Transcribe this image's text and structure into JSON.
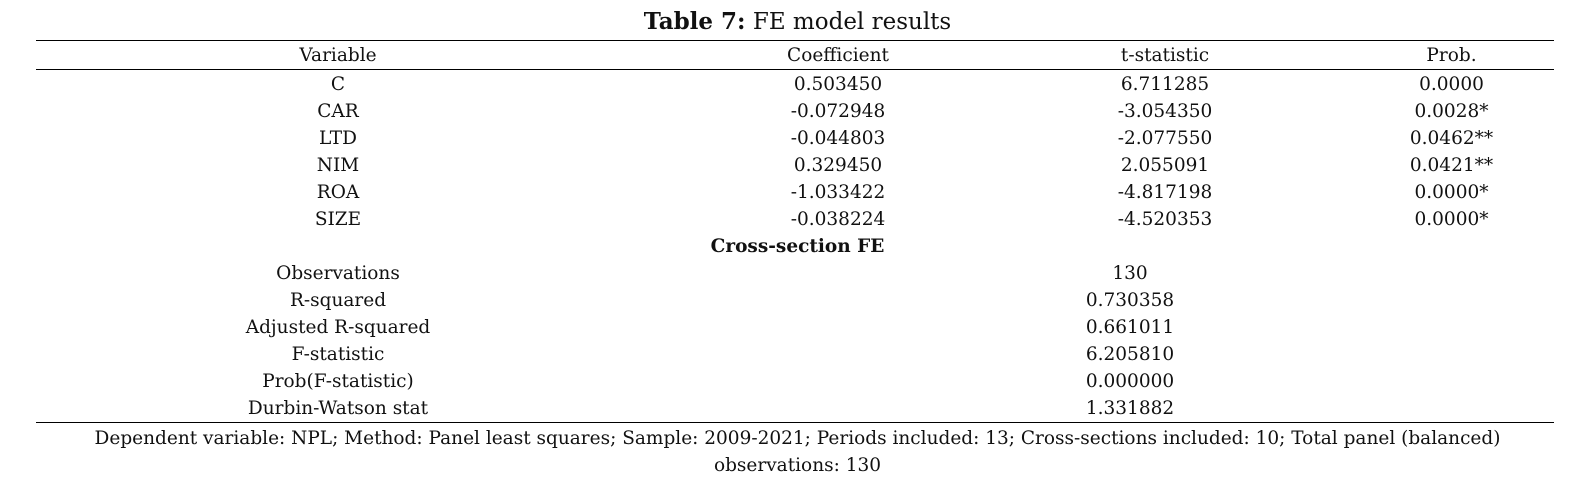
{
  "table": {
    "caption_label": "Table 7:",
    "caption_title": "FE model results",
    "headers": [
      "Variable",
      "Coefficient",
      "t-statistic",
      "Prob."
    ],
    "rows": [
      [
        "C",
        "0.503450",
        "6.711285",
        "0.0000"
      ],
      [
        "CAR",
        "-0.072948",
        "-3.054350",
        "0.0028*"
      ],
      [
        "LTD",
        "-0.044803",
        "-2.077550",
        "0.0462**"
      ],
      [
        "NIM",
        "0.329450",
        "2.055091",
        "0.0421**"
      ],
      [
        "ROA",
        "-1.033422",
        "-4.817198",
        "0.0000*"
      ],
      [
        "SIZE",
        "-0.038224",
        "-4.520353",
        "0.0000*"
      ]
    ],
    "section_title": "Cross-section FE",
    "stats": [
      [
        "Observations",
        "130"
      ],
      [
        "R-squared",
        "0.730358"
      ],
      [
        "Adjusted R-squared",
        "0.661011"
      ],
      [
        "F-statistic",
        "6.205810"
      ],
      [
        "Prob(F-statistic)",
        "0.000000"
      ],
      [
        "Durbin-Watson stat",
        "1.331882"
      ]
    ],
    "note_line1": "Dependent variable: NPL; Method: Panel least squares; Sample: 2009-2021; Periods included: 13; Cross-sections included: 10; Total panel (balanced)",
    "note_line2": "observations: 130"
  }
}
